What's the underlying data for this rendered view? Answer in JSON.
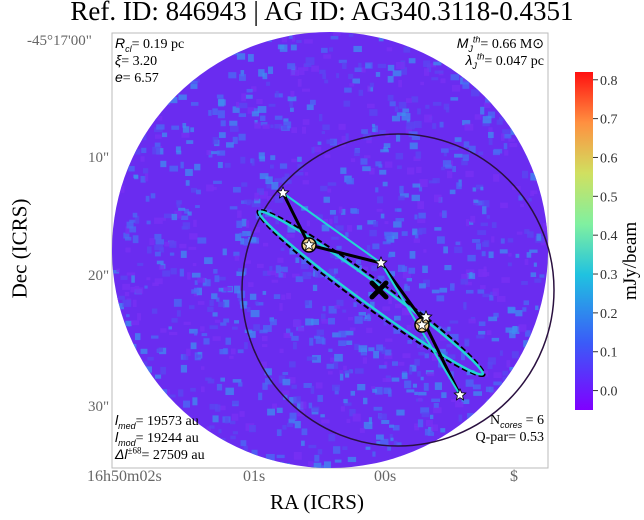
{
  "title": "Ref. ID: 846943 | AG ID: AG340.3118-0.4351",
  "annotations": {
    "top_left": {
      "rcl": "= 0.19 pc",
      "xi": "= 3.20",
      "e": "= 6.57"
    },
    "top_right": {
      "mj": "= 0.66 M⊙",
      "lj": "= 0.047 pc"
    },
    "bottom_left": {
      "lmed": "= 19573 au",
      "lmod": "= 19244 au",
      "dl": "= 27509 au"
    },
    "bottom_right": {
      "ncores": "N",
      "ncores_sub": "cores",
      "ncores_val": " = 6",
      "qpar": "Q-par= 0.53"
    }
  },
  "chart_data": {
    "type": "heatmap",
    "title": "Ref. ID: 846943 | AG ID: AG340.3118-0.4351",
    "xlabel": "RA (ICRS)",
    "ylabel": "Dec (ICRS)",
    "x_ticks": [
      "16h50m02s",
      "01s",
      "00s",
      "$"
    ],
    "y_ticks": [
      "-45°17'00\"",
      "10\"",
      "20\"",
      "30\""
    ],
    "colorbar": {
      "label": "mJy/beam",
      "range": [
        -0.05,
        0.82
      ],
      "ticks": [
        "0.8",
        "0.7",
        "0.6",
        "0.5",
        "0.4",
        "0.3",
        "0.2",
        "0.1",
        "0.0"
      ],
      "colormap": "rainbow"
    },
    "n_cores": 6,
    "colors": {
      "background_emission": "#6a2cf0",
      "mst": "#000000",
      "ellipse": "#22d6d6",
      "fov_circle": "#2a1040"
    }
  }
}
